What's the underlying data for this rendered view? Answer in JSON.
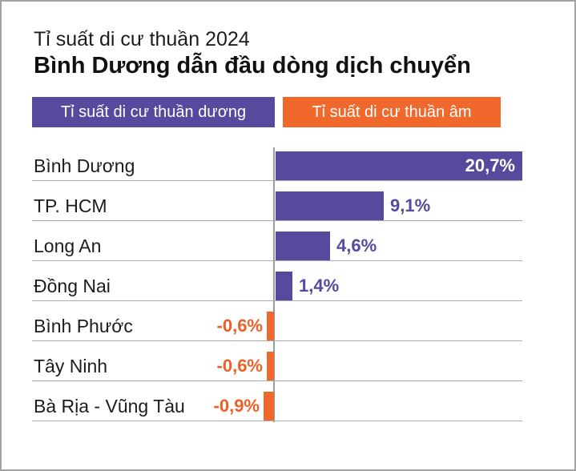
{
  "header": {
    "title": "Tỉ suất di cư thuần 2024",
    "subtitle": "Bình Dương dẫn đầu dòng dịch chuyển"
  },
  "legend": {
    "positive_label": "Tỉ suất di cư thuần dương",
    "negative_label": "Tỉ suất di cư thuần âm"
  },
  "colors": {
    "positive": "#564a9e",
    "negative": "#f0682b",
    "negative_text": "#ed5f25",
    "positive_text": "#564a9e",
    "value_inside": "#ffffff",
    "grid": "#ababab",
    "axis": "#9b9b9b",
    "text": "#1c1c1c"
  },
  "chart_data": {
    "type": "bar",
    "orientation": "horizontal",
    "unit": "%",
    "title": "Tỉ suất di cư thuần 2024",
    "subtitle": "Bình Dương dẫn đầu dòng dịch chuyển",
    "legend": [
      "Tỉ suất di cư thuần dương",
      "Tỉ suất di cư thuần âm"
    ],
    "categories": [
      "Bình Dương",
      "TP. HCM",
      "Long An",
      "Đồng Nai",
      "Bình Phước",
      "Tây Ninh",
      "Bà Rịa - Vũng Tàu"
    ],
    "values": [
      20.7,
      9.1,
      4.6,
      1.4,
      -0.6,
      -0.6,
      -0.9
    ],
    "value_labels": [
      "20,7%",
      "9,1%",
      "4,6%",
      "1,4%",
      "-0,6%",
      "-0,6%",
      "-0,9%"
    ],
    "xlim": [
      -0.9,
      20.7
    ],
    "grid": "horizontal-row-separators",
    "legend_position": "top"
  }
}
